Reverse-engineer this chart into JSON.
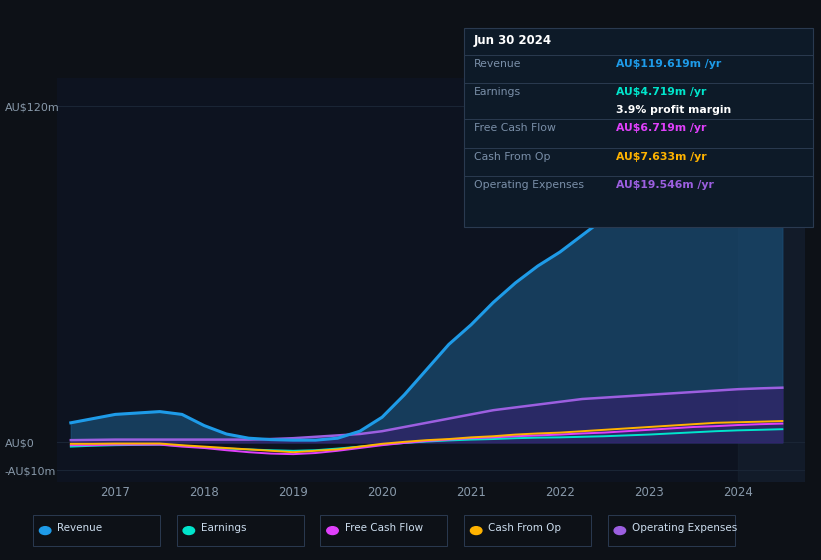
{
  "bg_color": "#0d1117",
  "plot_bg_color": "#0d1320",
  "grid_color": "#1a2535",
  "years": [
    2016.5,
    2016.75,
    2017.0,
    2017.25,
    2017.5,
    2017.75,
    2018.0,
    2018.25,
    2018.5,
    2018.75,
    2019.0,
    2019.25,
    2019.5,
    2019.75,
    2020.0,
    2020.25,
    2020.5,
    2020.75,
    2021.0,
    2021.25,
    2021.5,
    2021.75,
    2022.0,
    2022.25,
    2022.5,
    2022.75,
    2023.0,
    2023.25,
    2023.5,
    2023.75,
    2024.0,
    2024.25,
    2024.5
  ],
  "revenue": [
    7,
    8.5,
    10,
    10.5,
    11,
    10,
    6,
    3,
    1.5,
    1,
    0.8,
    0.8,
    1.5,
    4,
    9,
    17,
    26,
    35,
    42,
    50,
    57,
    63,
    68,
    74,
    80,
    88,
    96,
    103,
    108,
    112,
    116,
    118,
    119.619
  ],
  "earnings": [
    -1.5,
    -1.2,
    -1.0,
    -0.9,
    -0.8,
    -1.2,
    -1.8,
    -2.2,
    -2.5,
    -2.8,
    -3.0,
    -2.8,
    -2.2,
    -1.5,
    -0.8,
    -0.2,
    0.3,
    0.7,
    1.0,
    1.2,
    1.5,
    1.7,
    1.8,
    2.0,
    2.2,
    2.5,
    2.8,
    3.2,
    3.6,
    4.0,
    4.3,
    4.5,
    4.719
  ],
  "free_cash_flow": [
    -1.0,
    -1.0,
    -0.8,
    -0.8,
    -0.8,
    -1.5,
    -2.0,
    -2.8,
    -3.5,
    -4.0,
    -4.2,
    -3.8,
    -3.0,
    -2.0,
    -1.0,
    -0.2,
    0.5,
    1.0,
    1.5,
    1.8,
    2.2,
    2.5,
    2.8,
    3.2,
    3.5,
    4.0,
    4.5,
    5.0,
    5.5,
    5.8,
    6.2,
    6.5,
    6.719
  ],
  "cash_from_op": [
    -0.5,
    -0.5,
    -0.4,
    -0.4,
    -0.4,
    -1.0,
    -1.5,
    -2.0,
    -2.5,
    -3.0,
    -3.5,
    -3.0,
    -2.5,
    -1.5,
    -0.5,
    0.2,
    0.8,
    1.2,
    1.8,
    2.2,
    2.8,
    3.2,
    3.5,
    4.0,
    4.5,
    5.0,
    5.5,
    6.0,
    6.5,
    7.0,
    7.2,
    7.4,
    7.633
  ],
  "operating_expenses": [
    0.8,
    0.9,
    1.0,
    1.0,
    1.0,
    1.0,
    1.0,
    1.0,
    1.0,
    1.2,
    1.5,
    2.0,
    2.5,
    3.0,
    4.0,
    5.5,
    7.0,
    8.5,
    10.0,
    11.5,
    12.5,
    13.5,
    14.5,
    15.5,
    16.0,
    16.5,
    17.0,
    17.5,
    18.0,
    18.5,
    19.0,
    19.3,
    19.546
  ],
  "revenue_color": "#1e9be8",
  "earnings_color": "#00e5cc",
  "free_cash_flow_color": "#e040fb",
  "cash_from_op_color": "#ffb300",
  "operating_expenses_color": "#9c5fe0",
  "revenue_fill_alpha": 0.75,
  "operating_fill_alpha": 0.55,
  "ylim_min": -14,
  "ylim_max": 130,
  "yticks": [
    -10,
    0,
    120
  ],
  "ytick_labels": [
    "-AU$10m",
    "AU$0",
    "AU$120m"
  ],
  "xmin": 2016.35,
  "xmax": 2024.75,
  "shade_start": 2024.0,
  "info_box": {
    "date": "Jun 30 2024",
    "revenue_label": "Revenue",
    "revenue_value": "AU$119.619m /yr",
    "earnings_label": "Earnings",
    "earnings_value": "AU$4.719m /yr",
    "profit_margin": "3.9% profit margin",
    "fcf_label": "Free Cash Flow",
    "fcf_value": "AU$6.719m /yr",
    "cashop_label": "Cash From Op",
    "cashop_value": "AU$7.633m /yr",
    "opex_label": "Operating Expenses",
    "opex_value": "AU$19.546m /yr"
  },
  "legend_items": [
    "Revenue",
    "Earnings",
    "Free Cash Flow",
    "Cash From Op",
    "Operating Expenses"
  ],
  "legend_colors": [
    "#1e9be8",
    "#00e5cc",
    "#e040fb",
    "#ffb300",
    "#9c5fe0"
  ]
}
